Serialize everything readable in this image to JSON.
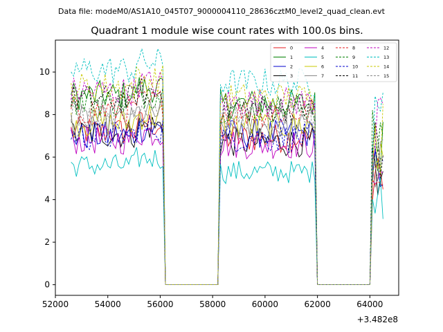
{
  "file_label": "Data file: modeM0/AS1A10_045T07_9000004110_28636cztM0_level2_quad_clean.evt",
  "chart_data": {
    "type": "line",
    "title": "Quadrant 1 module wise count rates with 100.0s bins.",
    "xlabel": "",
    "ylabel": "",
    "x_offset_label": "+3.482e8",
    "xlim": [
      52000,
      65100
    ],
    "ylim": [
      -0.5,
      11.5
    ],
    "xticks": [
      52000,
      54000,
      56000,
      58000,
      60000,
      62000,
      64000
    ],
    "xtick_labels": [
      "52000",
      "54000",
      "56000",
      "58000",
      "60000",
      "62000",
      "64000"
    ],
    "yticks": [
      0,
      2,
      4,
      6,
      8,
      10
    ],
    "ytick_labels": [
      "0",
      "2",
      "4",
      "6",
      "8",
      "10"
    ],
    "grid": false,
    "legend_position": "top-right",
    "bin_seconds": 100,
    "segments": [
      {
        "start": 52600,
        "end": 56100,
        "off_start": 56200,
        "off_end": 58200
      },
      {
        "start": 58300,
        "end": 61900,
        "off_start": 62000,
        "off_end": 64000
      },
      {
        "start": 64100,
        "end": 64500
      }
    ],
    "series": [
      {
        "name": "0",
        "color": "#e41a1c",
        "dash": false,
        "levels": [
          7.2,
          6.9,
          7.0
        ]
      },
      {
        "name": "1",
        "color": "#008000",
        "dash": false,
        "levels": [
          8.9,
          8.5,
          8.8
        ]
      },
      {
        "name": "2",
        "color": "#0000cc",
        "dash": false,
        "levels": [
          7.0,
          7.1,
          7.2
        ]
      },
      {
        "name": "3",
        "color": "#000000",
        "dash": false,
        "levels": [
          7.1,
          6.7,
          6.9
        ]
      },
      {
        "name": "4",
        "color": "#bf00bf",
        "dash": false,
        "levels": [
          6.8,
          6.6,
          6.9
        ]
      },
      {
        "name": "5",
        "color": "#00bfbf",
        "dash": false,
        "levels": [
          5.6,
          5.3,
          5.6
        ]
      },
      {
        "name": "6",
        "color": "#c8c800",
        "dash": false,
        "levels": [
          7.6,
          7.5,
          7.8
        ]
      },
      {
        "name": "7",
        "color": "#888888",
        "dash": false,
        "levels": [
          7.7,
          7.4,
          7.6
        ]
      },
      {
        "name": "8",
        "color": "#e41a1c",
        "dash": true,
        "levels": [
          8.2,
          8.1,
          8.3
        ]
      },
      {
        "name": "9",
        "color": "#008000",
        "dash": true,
        "levels": [
          8.6,
          8.3,
          8.6
        ]
      },
      {
        "name": "10",
        "color": "#0000cc",
        "dash": true,
        "levels": [
          7.0,
          6.9,
          7.2
        ]
      },
      {
        "name": "11",
        "color": "#000000",
        "dash": true,
        "levels": [
          8.7,
          8.3,
          8.6
        ]
      },
      {
        "name": "12",
        "color": "#bf00bf",
        "dash": true,
        "levels": [
          9.1,
          8.6,
          8.9
        ]
      },
      {
        "name": "13",
        "color": "#00bfbf",
        "dash": true,
        "levels": [
          10.1,
          9.5,
          9.9
        ]
      },
      {
        "name": "14",
        "color": "#c8c800",
        "dash": true,
        "levels": [
          9.3,
          8.8,
          9.2
        ]
      },
      {
        "name": "15",
        "color": "#888888",
        "dash": true,
        "levels": [
          8.1,
          7.9,
          8.2
        ]
      }
    ]
  }
}
